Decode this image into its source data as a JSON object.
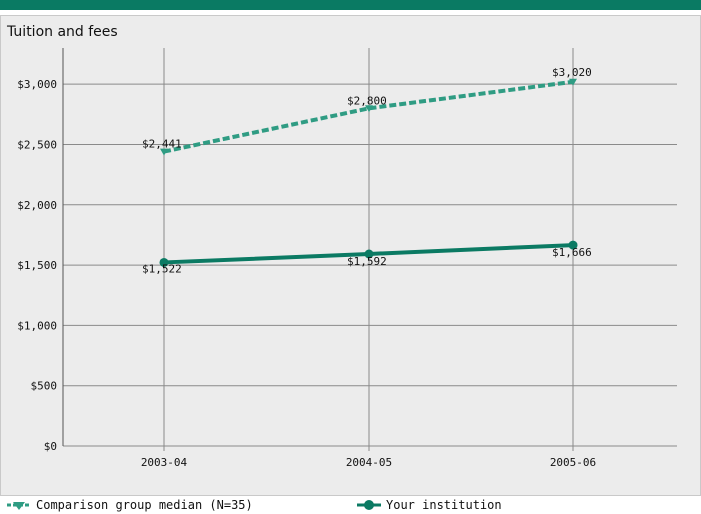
{
  "chart_data": {
    "type": "line",
    "title": "Tuition and fees",
    "categories": [
      "2003-04",
      "2004-05",
      "2005-06"
    ],
    "ylim": [
      0,
      3300
    ],
    "yticks": [
      0,
      500,
      1000,
      1500,
      2000,
      2500,
      3000
    ],
    "ytick_labels": [
      "$0",
      "$500",
      "$1,000",
      "$1,500",
      "$2,000",
      "$2,500",
      "$3,000"
    ],
    "grid": true,
    "legend_position": "bottom",
    "series": [
      {
        "name": "Comparison group median (N=35)",
        "values": [
          2441,
          2800,
          3020
        ],
        "labels": [
          "$2,441",
          "$2,800",
          "$3,020"
        ],
        "style": "dashed",
        "color": "#2f9c83",
        "marker": "triangle-down"
      },
      {
        "name": "Your institution",
        "values": [
          1522,
          1592,
          1666
        ],
        "labels": [
          "$1,522",
          "$1,592",
          "$1,666"
        ],
        "style": "solid",
        "color": "#0b7a63",
        "marker": "circle"
      }
    ]
  }
}
